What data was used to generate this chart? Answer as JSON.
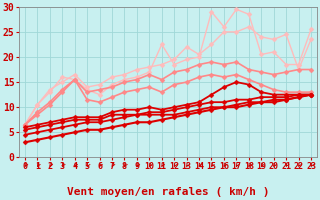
{
  "title": "",
  "xlabel": "Vent moyen/en rafales ( km/h )",
  "bg_color": "#c8f0f0",
  "grid_color": "#a0d8d8",
  "x_ticks": [
    0,
    1,
    2,
    3,
    4,
    5,
    6,
    7,
    8,
    9,
    10,
    11,
    12,
    13,
    14,
    15,
    16,
    17,
    18,
    19,
    20,
    21,
    22,
    23
  ],
  "y_ticks": [
    0,
    5,
    10,
    15,
    20,
    25,
    30
  ],
  "xlim": [
    -0.5,
    23.5
  ],
  "ylim": [
    0,
    30
  ],
  "series": [
    {
      "x": [
        0,
        1,
        2,
        3,
        4,
        5,
        6,
        7,
        8,
        9,
        10,
        11,
        12,
        13,
        14,
        15,
        16,
        17,
        18,
        19,
        20,
        21,
        22,
        23
      ],
      "y": [
        3.0,
        3.5,
        4.0,
        4.5,
        5.0,
        5.5,
        5.5,
        6.0,
        6.5,
        7.0,
        7.0,
        7.5,
        8.0,
        8.5,
        9.0,
        9.5,
        10.0,
        10.0,
        10.5,
        11.0,
        11.0,
        11.5,
        12.0,
        12.5
      ],
      "color": "#dd0000",
      "linewidth": 1.5,
      "marker": "D",
      "markersize": 2.5,
      "zorder": 6
    },
    {
      "x": [
        0,
        1,
        2,
        3,
        4,
        5,
        6,
        7,
        8,
        9,
        10,
        11,
        12,
        13,
        14,
        15,
        16,
        17,
        18,
        19,
        20,
        21,
        22,
        23
      ],
      "y": [
        4.5,
        5.0,
        5.5,
        6.0,
        6.5,
        7.0,
        7.0,
        7.5,
        8.0,
        8.5,
        8.5,
        8.5,
        8.5,
        9.0,
        9.5,
        10.0,
        10.0,
        10.5,
        11.0,
        11.0,
        11.5,
        11.5,
        12.0,
        12.5
      ],
      "color": "#dd0000",
      "linewidth": 1.3,
      "marker": "D",
      "markersize": 2.5,
      "zorder": 6
    },
    {
      "x": [
        0,
        1,
        2,
        3,
        4,
        5,
        6,
        7,
        8,
        9,
        10,
        11,
        12,
        13,
        14,
        15,
        16,
        17,
        18,
        19,
        20,
        21,
        22,
        23
      ],
      "y": [
        5.5,
        6.0,
        6.5,
        7.0,
        7.5,
        7.5,
        7.5,
        8.5,
        8.5,
        8.5,
        9.0,
        9.0,
        9.5,
        10.0,
        10.5,
        11.0,
        11.0,
        11.5,
        11.5,
        12.0,
        12.0,
        12.0,
        12.5,
        12.5
      ],
      "color": "#dd0000",
      "linewidth": 1.3,
      "marker": "D",
      "markersize": 2.5,
      "zorder": 6
    },
    {
      "x": [
        0,
        1,
        2,
        3,
        4,
        5,
        6,
        7,
        8,
        9,
        10,
        11,
        12,
        13,
        14,
        15,
        16,
        17,
        18,
        19,
        20,
        21,
        22,
        23
      ],
      "y": [
        6.0,
        6.5,
        7.0,
        7.5,
        8.0,
        8.0,
        8.0,
        9.0,
        9.5,
        9.5,
        10.0,
        9.5,
        10.0,
        10.5,
        11.0,
        12.5,
        14.0,
        15.0,
        14.5,
        13.0,
        12.5,
        12.5,
        12.5,
        12.5
      ],
      "color": "#dd0000",
      "linewidth": 1.3,
      "marker": "D",
      "markersize": 2.5,
      "zorder": 6
    },
    {
      "x": [
        0,
        1,
        2,
        3,
        4,
        5,
        6,
        7,
        8,
        9,
        10,
        11,
        12,
        13,
        14,
        15,
        16,
        17,
        18,
        19,
        20,
        21,
        22,
        23
      ],
      "y": [
        6.5,
        8.5,
        10.5,
        13.0,
        15.5,
        11.5,
        11.0,
        12.0,
        13.0,
        13.5,
        14.0,
        13.0,
        14.5,
        15.0,
        16.0,
        16.5,
        16.0,
        16.5,
        15.5,
        14.5,
        13.5,
        13.0,
        13.0,
        13.0
      ],
      "color": "#ff8888",
      "linewidth": 1.2,
      "marker": "D",
      "markersize": 2.5,
      "zorder": 4
    },
    {
      "x": [
        0,
        1,
        2,
        3,
        4,
        5,
        6,
        7,
        8,
        9,
        10,
        11,
        12,
        13,
        14,
        15,
        16,
        17,
        18,
        19,
        20,
        21,
        22,
        23
      ],
      "y": [
        6.5,
        9.0,
        11.0,
        13.5,
        15.5,
        13.0,
        13.5,
        14.0,
        15.0,
        15.5,
        16.5,
        15.5,
        17.0,
        17.5,
        18.5,
        19.0,
        18.5,
        19.0,
        17.5,
        17.0,
        16.5,
        17.0,
        17.5,
        17.5
      ],
      "color": "#ff8888",
      "linewidth": 1.2,
      "marker": "D",
      "markersize": 2.5,
      "zorder": 4
    },
    {
      "x": [
        0,
        1,
        2,
        3,
        4,
        5,
        6,
        7,
        8,
        9,
        10,
        11,
        12,
        13,
        14,
        15,
        16,
        17,
        18,
        19,
        20,
        21,
        22,
        23
      ],
      "y": [
        6.5,
        10.5,
        13.0,
        16.0,
        15.5,
        13.5,
        12.5,
        14.5,
        15.5,
        16.0,
        17.0,
        22.5,
        18.5,
        19.5,
        20.0,
        29.0,
        26.0,
        29.5,
        28.5,
        20.5,
        21.0,
        18.5,
        18.5,
        25.5
      ],
      "color": "#ffbbbb",
      "linewidth": 1.0,
      "marker": "D",
      "markersize": 2.5,
      "zorder": 3
    },
    {
      "x": [
        0,
        1,
        2,
        3,
        4,
        5,
        6,
        7,
        8,
        9,
        10,
        11,
        12,
        13,
        14,
        15,
        16,
        17,
        18,
        19,
        20,
        21,
        22,
        23
      ],
      "y": [
        6.5,
        10.5,
        13.5,
        15.0,
        16.5,
        14.0,
        14.5,
        16.0,
        16.5,
        17.5,
        18.0,
        18.5,
        19.5,
        22.0,
        20.5,
        22.5,
        25.0,
        25.0,
        26.0,
        24.0,
        23.5,
        24.5,
        17.5,
        23.5
      ],
      "color": "#ffbbbb",
      "linewidth": 1.0,
      "marker": "D",
      "markersize": 2.5,
      "zorder": 3
    }
  ],
  "arrow_color": "#cc0000",
  "xlabel_color": "#cc0000",
  "xlabel_fontsize": 8,
  "tick_color": "#cc0000",
  "tick_fontsize": 6,
  "ytick_fontsize": 7
}
